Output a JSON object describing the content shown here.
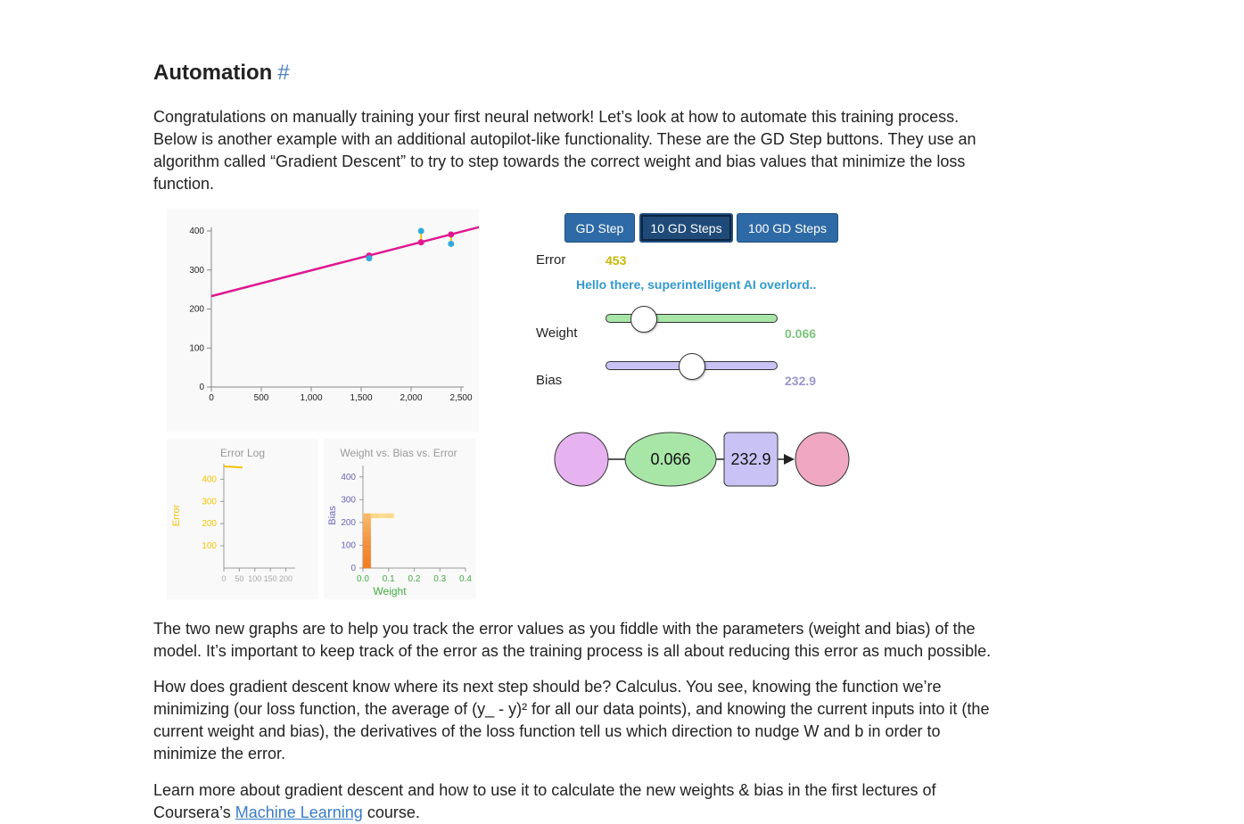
{
  "heading": {
    "title": "Automation",
    "anchor": "#"
  },
  "paragraphs": {
    "intro": "Congratulations on manually training your first neural network! Let’s look at how to automate this training process. Below is another example with an additional autopilot-like functionality. These are the GD Step buttons. They use an algorithm called “Gradient Descent” to try to step towards the correct weight and bias values that minimize the loss function.",
    "graphs": "The two new graphs are to help you track the error values as you fiddle with the parameters (weight and bias) of the model. It’s important to keep track of the error as the training process is all about reducing this error as much possible.",
    "gradient": "How does gradient descent know where its next step should be? Calculus. You see, knowing the function we’re minimizing (our loss function, the average of (y_ - y)² for all our data points), and knowing the current inputs into it (the current weight and bias), the derivatives of the loss function tell us which direction to nudge W and b in order to minimize the error.",
    "learn_before": "Learn more about gradient descent and how to use it to calculate the new weights & bias in the first lectures of Coursera’s ",
    "learn_link": "Machine Learning",
    "learn_after": " course."
  },
  "controls": {
    "buttons": [
      "GD Step",
      "10 GD Steps",
      "100 GD Steps"
    ],
    "active_button": "10 GD Steps",
    "error_label": "Error",
    "error_value": "453",
    "message": "Hello there, superintelligent AI overlord..",
    "weight_label": "Weight",
    "weight_value": "0.066",
    "bias_label": "Bias",
    "bias_value": "232.9",
    "colors": {
      "error": "#c9b600",
      "message": "#3399cc",
      "weight": "#7cc47c",
      "bias": "#9b96cc",
      "accent": "#2e6aa5"
    }
  },
  "network": {
    "weight": "0.066",
    "bias": "232.9",
    "colors": {
      "input": "#e6b3f0",
      "weight": "#a8e6a8",
      "bias": "#c9c3f5",
      "output": "#f0a8c2"
    }
  },
  "chart_data": [
    {
      "type": "scatter",
      "title": "",
      "xlabel": "",
      "ylabel": "",
      "xlim": [
        0,
        2500
      ],
      "ylim": [
        0,
        400
      ],
      "xticks": [
        "0",
        "500",
        "1,000",
        "1,500",
        "2,000",
        "2,500"
      ],
      "yticks": [
        "0",
        "100",
        "200",
        "300",
        "400"
      ],
      "points": [
        {
          "x": 1580,
          "y": 330
        },
        {
          "x": 2100,
          "y": 400
        },
        {
          "x": 2400,
          "y": 367
        }
      ],
      "predictions": [
        {
          "x": 1580,
          "y": 337
        },
        {
          "x": 2100,
          "y": 371
        },
        {
          "x": 2400,
          "y": 391
        }
      ],
      "line": {
        "weight": 0.066,
        "bias": 232.9
      },
      "colors": {
        "points": "#33aadd",
        "line": "#e0168f",
        "residual": "#e8c800"
      }
    },
    {
      "type": "line",
      "title": "Error Log",
      "xlabel": "",
      "ylabel": "Error",
      "xlim": [
        0,
        230
      ],
      "ylim": [
        0,
        470
      ],
      "xticks": [
        "0",
        "50",
        "100",
        "150",
        "200"
      ],
      "yticks": [
        "100",
        "200",
        "300",
        "400"
      ],
      "x": [
        0,
        10,
        20,
        30,
        40,
        50,
        60
      ],
      "values": [
        458,
        457,
        457,
        456,
        455,
        454,
        453
      ],
      "color": "#f2c200"
    },
    {
      "type": "heatmap",
      "title": "Weight vs. Bias vs. Error",
      "xlabel": "Weight",
      "ylabel": "Bias",
      "xlim": [
        0,
        0.4
      ],
      "ylim": [
        0,
        450
      ],
      "xticks": [
        "0.0",
        "0.1",
        "0.2",
        "0.3",
        "0.4"
      ],
      "yticks": [
        "0",
        "100",
        "200",
        "300",
        "400"
      ],
      "cells": [
        {
          "w": 0.0,
          "b": 0,
          "e": 0.95
        },
        {
          "w": 0.0,
          "b": 20,
          "e": 0.93
        },
        {
          "w": 0.0,
          "b": 40,
          "e": 0.9
        },
        {
          "w": 0.0,
          "b": 60,
          "e": 0.87
        },
        {
          "w": 0.0,
          "b": 80,
          "e": 0.84
        },
        {
          "w": 0.0,
          "b": 100,
          "e": 0.8
        },
        {
          "w": 0.0,
          "b": 120,
          "e": 0.75
        },
        {
          "w": 0.0,
          "b": 140,
          "e": 0.7
        },
        {
          "w": 0.0,
          "b": 160,
          "e": 0.65
        },
        {
          "w": 0.0,
          "b": 180,
          "e": 0.6
        },
        {
          "w": 0.0,
          "b": 200,
          "e": 0.55
        },
        {
          "w": 0.0,
          "b": 220,
          "e": 0.5
        },
        {
          "w": 0.03,
          "b": 220,
          "e": 0.25
        },
        {
          "w": 0.06,
          "b": 220,
          "e": 0.2
        },
        {
          "w": 0.09,
          "b": 220,
          "e": 0.22
        }
      ],
      "colors": {
        "low": "#fff7b0",
        "high": "#f07820"
      }
    }
  ]
}
